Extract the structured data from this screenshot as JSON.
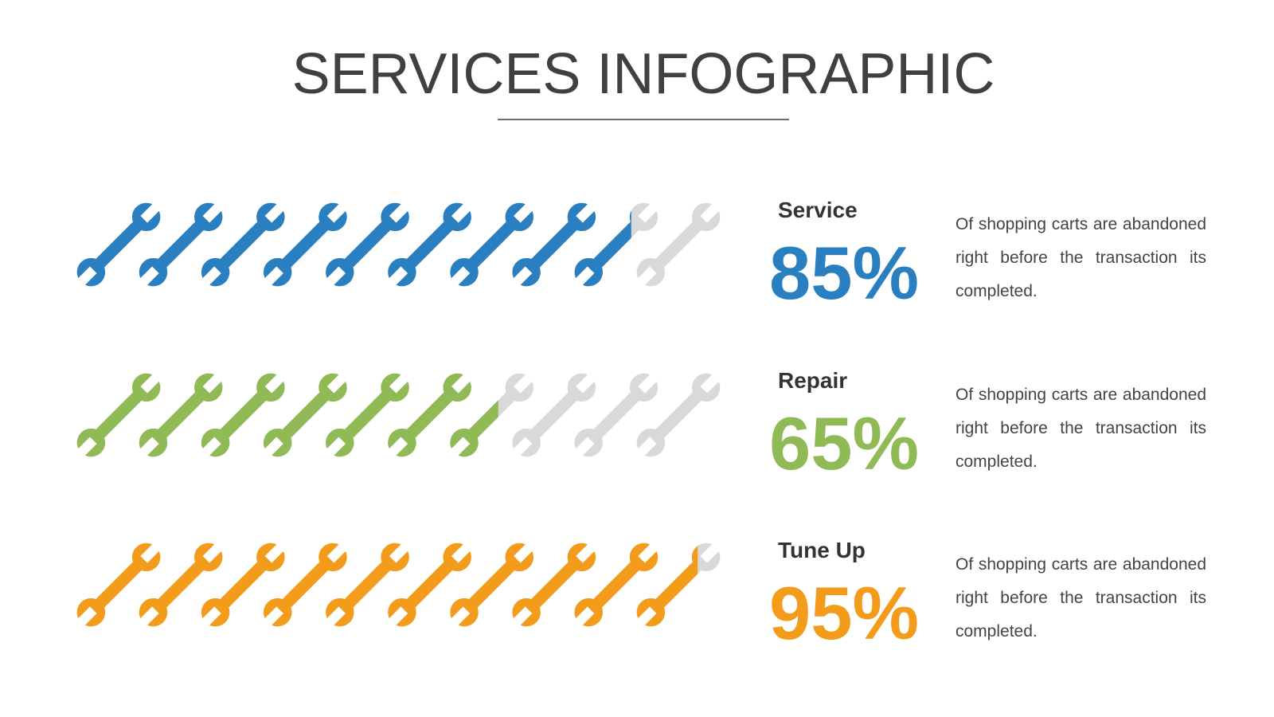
{
  "chart_data": {
    "type": "pictograph",
    "title": "SERVICES INFOGRAPHIC",
    "categories": [
      "Service",
      "Repair",
      "Tune Up"
    ],
    "values": [
      85,
      65,
      95
    ],
    "value_labels": [
      "85%",
      "65%",
      "95%"
    ],
    "colors": [
      "#2a7fc0",
      "#8fba55",
      "#f39c1b"
    ],
    "empty_color": "#d9d9d9",
    "descriptions": [
      "Of shopping carts are abandoned right before the transaction its completed.",
      "Of shopping carts are abandoned right before the transaction its completed.",
      "Of shopping carts are abandoned right before the transaction its completed."
    ]
  }
}
